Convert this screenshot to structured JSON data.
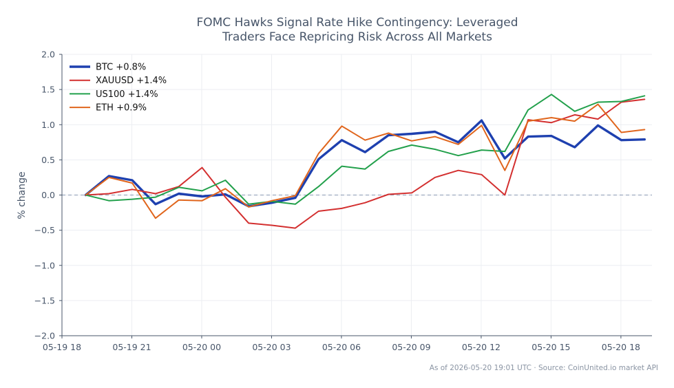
{
  "chart_data": {
    "type": "line",
    "title": [
      "FOMC Hawks Signal Rate Hike Contingency: Leveraged",
      "Traders Face Repricing Risk Across All Markets"
    ],
    "ylabel": "% change",
    "xlabel": "",
    "ylim": [
      -2.0,
      2.0
    ],
    "yticks": [
      "2.0",
      "1.5",
      "1.0",
      "0.5",
      "0.0",
      "−0.5",
      "−1.0",
      "−1.5",
      "−2.0"
    ],
    "ytick_values": [
      2.0,
      1.5,
      1.0,
      0.5,
      0.0,
      -0.5,
      -1.0,
      -1.5,
      -2.0
    ],
    "x_start": "2026-05-19 18:00",
    "x_end": "2026-05-20 19:20",
    "xticks": [
      "05-19 18",
      "05-19 21",
      "05-20 00",
      "05-20 03",
      "05-20 06",
      "05-20 09",
      "05-20 12",
      "05-20 15",
      "05-20 18"
    ],
    "xtick_values": [
      "2026-05-19 18:00",
      "2026-05-19 21:00",
      "2026-05-20 00:00",
      "2026-05-20 03:00",
      "2026-05-20 06:00",
      "2026-05-20 09:00",
      "2026-05-20 12:00",
      "2026-05-20 15:00",
      "2026-05-20 18:00"
    ],
    "x": [
      "2026-05-19 19:01",
      "2026-05-19 20:01",
      "2026-05-19 21:01",
      "2026-05-19 22:01",
      "2026-05-19 23:01",
      "2026-05-20 00:01",
      "2026-05-20 01:01",
      "2026-05-20 02:01",
      "2026-05-20 03:01",
      "2026-05-20 04:01",
      "2026-05-20 05:01",
      "2026-05-20 06:01",
      "2026-05-20 07:01",
      "2026-05-20 08:01",
      "2026-05-20 09:01",
      "2026-05-20 10:01",
      "2026-05-20 11:01",
      "2026-05-20 12:01",
      "2026-05-20 13:01",
      "2026-05-20 14:01",
      "2026-05-20 15:01",
      "2026-05-20 16:01",
      "2026-05-20 17:01",
      "2026-05-20 18:01",
      "2026-05-20 19:01"
    ],
    "grid": true,
    "reference_line": 0,
    "legend_position": "top-left",
    "series": [
      {
        "name": "BTC +0.8%",
        "color": "#1e40af",
        "width": "bold",
        "values": [
          0.0,
          0.27,
          0.21,
          -0.13,
          0.02,
          -0.02,
          0.01,
          -0.16,
          -0.11,
          -0.04,
          0.51,
          0.78,
          0.61,
          0.85,
          0.87,
          0.9,
          0.75,
          1.06,
          0.52,
          0.83,
          0.84,
          0.68,
          0.99,
          0.78,
          0.79
        ]
      },
      {
        "name": "XAUUSD +1.4%",
        "color": "#d32f2f",
        "width": "normal",
        "values": [
          0.0,
          0.02,
          0.08,
          0.02,
          0.12,
          0.39,
          -0.03,
          -0.4,
          -0.43,
          -0.47,
          -0.23,
          -0.19,
          -0.11,
          0.01,
          0.03,
          0.25,
          0.35,
          0.29,
          0.0,
          1.07,
          1.03,
          1.14,
          1.08,
          1.32,
          1.36
        ]
      },
      {
        "name": "US100 +1.4%",
        "color": "#22a04b",
        "width": "normal",
        "values": [
          0.0,
          -0.08,
          -0.06,
          -0.03,
          0.11,
          0.06,
          0.21,
          -0.13,
          -0.09,
          -0.13,
          0.12,
          0.41,
          0.37,
          0.62,
          0.71,
          0.65,
          0.56,
          0.64,
          0.62,
          1.21,
          1.43,
          1.19,
          1.32,
          1.33,
          1.41
        ]
      },
      {
        "name": "ETH +0.9%",
        "color": "#e0651c",
        "width": "normal",
        "values": [
          0.0,
          0.25,
          0.17,
          -0.33,
          -0.07,
          -0.08,
          0.09,
          -0.17,
          -0.08,
          -0.01,
          0.59,
          0.98,
          0.78,
          0.88,
          0.77,
          0.83,
          0.72,
          0.99,
          0.35,
          1.05,
          1.1,
          1.05,
          1.29,
          0.89,
          0.93
        ]
      }
    ],
    "footer": "As of 2026-05-20 19:01 UTC · Source: CoinUnited.io market API"
  }
}
